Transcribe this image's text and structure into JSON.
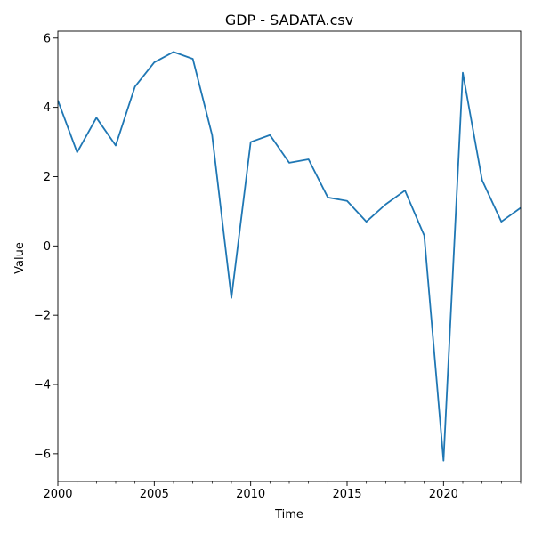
{
  "chart_data": {
    "type": "line",
    "title": "GDP - SADATA.csv",
    "xlabel": "Time",
    "ylabel": "Value",
    "xlim": [
      2000,
      2024
    ],
    "ylim": [
      -6.8,
      6.2
    ],
    "x_ticks": [
      2000,
      2005,
      2010,
      2015,
      2020
    ],
    "y_ticks": [
      -6,
      -4,
      -2,
      0,
      2,
      4,
      6
    ],
    "y_tick_labels": [
      "−6",
      "−4",
      "−2",
      "0",
      "2",
      "4",
      "6"
    ],
    "grid": false,
    "series": [
      {
        "color": "#1f77b4",
        "x": [
          2000,
          2001,
          2002,
          2003,
          2004,
          2005,
          2006,
          2007,
          2008,
          2009,
          2010,
          2011,
          2012,
          2013,
          2014,
          2015,
          2016,
          2017,
          2018,
          2019,
          2020,
          2021,
          2022,
          2023,
          2024
        ],
        "y": [
          4.2,
          2.7,
          3.7,
          2.9,
          4.6,
          5.3,
          5.6,
          5.4,
          3.2,
          -1.5,
          3.0,
          3.2,
          2.4,
          2.5,
          1.4,
          1.3,
          0.7,
          1.2,
          1.6,
          0.3,
          -6.2,
          5.0,
          1.9,
          0.7,
          1.1
        ]
      }
    ]
  }
}
